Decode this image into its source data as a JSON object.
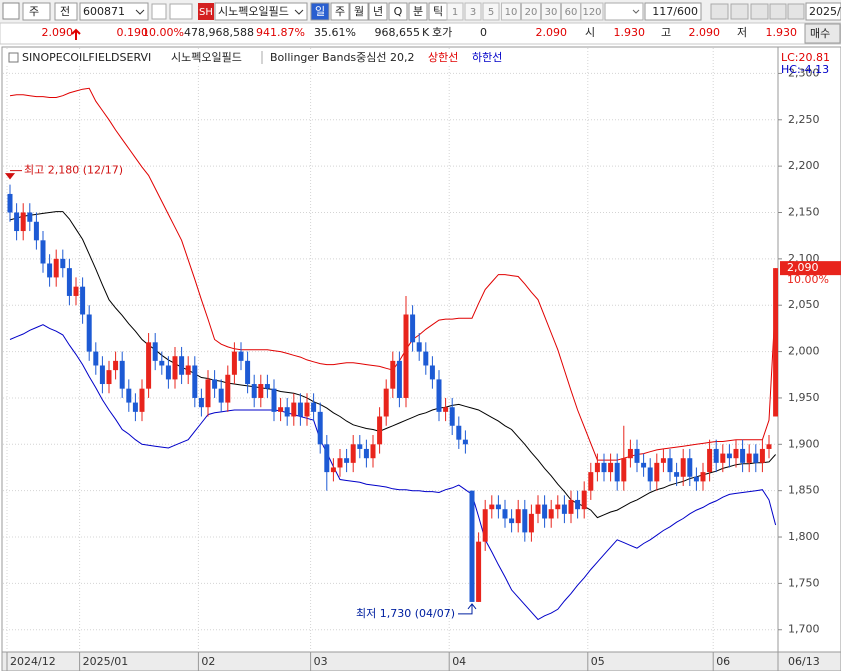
{
  "toolbar": {
    "period": "주",
    "prev_button": "전",
    "code": "600871",
    "market": "SH",
    "name": "시노펙오일필드",
    "intervals": [
      "일",
      "주",
      "월",
      "년",
      "Q",
      "분",
      "틱"
    ],
    "minutes": [
      "1",
      "3",
      "5",
      "10",
      "20",
      "30",
      "60",
      "120"
    ],
    "count": "117/600",
    "date": "2025/"
  },
  "quote": {
    "price": "2.090",
    "change": "0.190",
    "change_pct": "10.00%",
    "volume": "478,968,588",
    "volume_ratio": "941.87%",
    "turnover": "35.61%",
    "amount": "968,655",
    "amount_unit": "K",
    "bid_label": "호가",
    "bid": "0",
    "ask_price": "2.090",
    "open_label": "시",
    "open": "1.930",
    "high_label": "고",
    "high": "2.090",
    "low_label": "저",
    "low": "1.930",
    "buy": "매수"
  },
  "chart_data": {
    "type": "candlestick",
    "symbol": "SINOPECOILFIELDSERVI",
    "name": "시노펙오일필드",
    "categories": [
      "2024/12",
      null,
      null,
      null,
      null,
      null,
      null,
      null,
      null,
      null,
      null,
      "2025/01",
      null,
      null,
      null,
      null,
      null,
      null,
      null,
      null,
      null,
      null,
      null,
      null,
      null,
      null,
      null,
      null,
      null,
      "02",
      null,
      null,
      null,
      null,
      null,
      null,
      null,
      null,
      null,
      null,
      null,
      null,
      null,
      null,
      null,
      null,
      "03",
      null,
      null,
      null,
      null,
      null,
      null,
      null,
      null,
      null,
      null,
      null,
      null,
      null,
      null,
      null,
      null,
      null,
      null,
      null,
      null,
      "04",
      null,
      null,
      null,
      null,
      null,
      null,
      null,
      null,
      null,
      null,
      null,
      null,
      null,
      null,
      null,
      null,
      null,
      null,
      null,
      null,
      "05",
      null,
      null,
      null,
      null,
      null,
      null,
      null,
      null,
      null,
      null,
      null,
      null,
      null,
      null,
      null,
      null,
      null,
      null,
      "06",
      null,
      null,
      null,
      null,
      null,
      null,
      null,
      null,
      null
    ],
    "open": [
      2170,
      2150,
      2130,
      2150,
      2140,
      2120,
      2095,
      2080,
      2100,
      2090,
      2060,
      2070,
      2040,
      2000,
      1985,
      1965,
      1980,
      1990,
      1960,
      1945,
      1935,
      1960,
      2010,
      1990,
      1985,
      1970,
      1995,
      1975,
      1985,
      1950,
      1940,
      1970,
      1960,
      1945,
      1975,
      2000,
      1990,
      1965,
      1950,
      1965,
      1960,
      1935,
      1940,
      1930,
      1945,
      1930,
      1945,
      1935,
      1900,
      1870,
      1875,
      1885,
      1880,
      1900,
      1895,
      1885,
      1900,
      1930,
      1960,
      1990,
      1950,
      2040,
      2010,
      2000,
      1985,
      1970,
      1935,
      1940,
      1920,
      1905,
      1850,
      1730,
      1795,
      1830,
      1835,
      1830,
      1820,
      1815,
      1830,
      1805,
      1825,
      1835,
      1820,
      1830,
      1835,
      1825,
      1840,
      1830,
      1850,
      1870,
      1880,
      1870,
      1880,
      1860,
      1885,
      1895,
      1880,
      1875,
      1860,
      1880,
      1885,
      1870,
      1865,
      1885,
      1865,
      1860,
      1870,
      1895,
      1880,
      1890,
      1885,
      1895,
      1880,
      1890,
      1880,
      1895,
      1930
    ],
    "high": [
      2180,
      2160,
      2160,
      2160,
      2150,
      2130,
      2105,
      2110,
      2110,
      2100,
      2080,
      2080,
      2050,
      2010,
      1995,
      1990,
      2000,
      2000,
      1970,
      1955,
      1970,
      2020,
      2020,
      2000,
      1995,
      2005,
      2005,
      1995,
      1995,
      1960,
      1980,
      1980,
      1970,
      1985,
      2010,
      2010,
      2000,
      1975,
      1975,
      1975,
      1970,
      1950,
      1950,
      1955,
      1955,
      1955,
      1955,
      1945,
      1910,
      1885,
      1895,
      1895,
      1910,
      1910,
      1905,
      1910,
      1940,
      1970,
      2000,
      2000,
      2060,
      2050,
      2020,
      2010,
      1995,
      1980,
      1950,
      1950,
      1930,
      1915,
      1850,
      1805,
      1840,
      1845,
      1845,
      1840,
      1830,
      1840,
      1840,
      1835,
      1845,
      1845,
      1840,
      1845,
      1845,
      1850,
      1850,
      1860,
      1880,
      1890,
      1890,
      1890,
      1890,
      1920,
      1905,
      1905,
      1890,
      1885,
      1890,
      1895,
      1895,
      1880,
      1895,
      1895,
      1875,
      1880,
      1905,
      1905,
      1900,
      1900,
      1905,
      1905,
      1900,
      1900,
      1905,
      1910,
      2090
    ],
    "low": [
      2140,
      2120,
      2120,
      2130,
      2110,
      2085,
      2070,
      2070,
      2080,
      2050,
      2050,
      2030,
      1990,
      1975,
      1955,
      1955,
      1970,
      1950,
      1935,
      1925,
      1925,
      1950,
      1980,
      1975,
      1960,
      1960,
      1965,
      1965,
      1940,
      1930,
      1930,
      1950,
      1935,
      1935,
      1965,
      1980,
      1955,
      1940,
      1940,
      1950,
      1925,
      1925,
      1920,
      1920,
      1920,
      1920,
      1925,
      1890,
      1850,
      1860,
      1865,
      1870,
      1870,
      1885,
      1875,
      1875,
      1890,
      1920,
      1950,
      1940,
      1940,
      2000,
      1990,
      1975,
      1960,
      1925,
      1925,
      1910,
      1895,
      1890,
      1730,
      1730,
      1785,
      1820,
      1820,
      1810,
      1805,
      1805,
      1795,
      1795,
      1815,
      1810,
      1810,
      1820,
      1815,
      1815,
      1820,
      1820,
      1840,
      1860,
      1860,
      1860,
      1850,
      1850,
      1875,
      1870,
      1865,
      1850,
      1850,
      1870,
      1860,
      1855,
      1855,
      1855,
      1850,
      1850,
      1860,
      1870,
      1870,
      1875,
      1875,
      1870,
      1870,
      1870,
      1870,
      1885,
      1930
    ],
    "close": [
      2150,
      2130,
      2150,
      2140,
      2120,
      2095,
      2080,
      2100,
      2090,
      2060,
      2070,
      2040,
      2000,
      1985,
      1965,
      1980,
      1990,
      1960,
      1945,
      1935,
      1960,
      2010,
      1990,
      1985,
      1970,
      1995,
      1975,
      1985,
      1950,
      1940,
      1970,
      1960,
      1945,
      1975,
      2000,
      1990,
      1965,
      1950,
      1965,
      1960,
      1935,
      1940,
      1930,
      1945,
      1930,
      1945,
      1935,
      1900,
      1870,
      1875,
      1885,
      1880,
      1900,
      1895,
      1885,
      1900,
      1930,
      1960,
      1990,
      1950,
      2040,
      2010,
      2000,
      1985,
      1970,
      1935,
      1940,
      1920,
      1905,
      1900,
      1730,
      1795,
      1830,
      1835,
      1830,
      1820,
      1815,
      1830,
      1805,
      1825,
      1835,
      1820,
      1830,
      1835,
      1825,
      1840,
      1830,
      1850,
      1870,
      1880,
      1870,
      1880,
      1860,
      1885,
      1895,
      1880,
      1875,
      1860,
      1880,
      1885,
      1870,
      1865,
      1885,
      1865,
      1860,
      1870,
      1895,
      1880,
      1890,
      1885,
      1895,
      1880,
      1890,
      1880,
      1895,
      1900,
      2090
    ],
    "up_color": "#e8241c",
    "down_color": "#1d5ad4",
    "series": [
      {
        "name": "Bollinger Bands중심선 20,2",
        "color": "#000000",
        "values": [
          2142,
          2144,
          2146,
          2147,
          2148,
          2149,
          2150,
          2151,
          2151,
          2143,
          2132,
          2121,
          2105,
          2089,
          2072,
          2056,
          2047,
          2039,
          2030,
          2022,
          2013,
          2007,
          2002,
          1996,
          1991,
          1987,
          1983,
          1980,
          1976,
          1972,
          1971,
          1969,
          1968,
          1966,
          1965,
          1964,
          1963,
          1962,
          1961,
          1960,
          1959,
          1957,
          1956,
          1955,
          1953,
          1950,
          1946,
          1943,
          1939,
          1934,
          1930,
          1925,
          1921,
          1919,
          1917,
          1916,
          1914,
          1917,
          1920,
          1923,
          1926,
          1929,
          1932,
          1934,
          1937,
          1939,
          1940,
          1942,
          1943,
          1941,
          1939,
          1937,
          1933,
          1929,
          1925,
          1920,
          1916,
          1908,
          1900,
          1891,
          1883,
          1874,
          1866,
          1857,
          1849,
          1840,
          1836,
          1833,
          1829,
          1821,
          1824,
          1827,
          1829,
          1833,
          1837,
          1840,
          1844,
          1848,
          1851,
          1853,
          1856,
          1858,
          1860,
          1863,
          1865,
          1867,
          1869,
          1871,
          1874,
          1876,
          1878,
          1879,
          1879,
          1880,
          1880,
          1881,
          1889
        ]
      },
      {
        "name": "상한선",
        "color": "#e00000",
        "values": [
          2276,
          2277,
          2277,
          2276,
          2275,
          2275,
          2274,
          2274,
          2276,
          2279,
          2281,
          2283,
          2284,
          2270,
          2260,
          2250,
          2239,
          2229,
          2219,
          2209,
          2199,
          2190,
          2176,
          2162,
          2148,
          2134,
          2120,
          2099,
          2078,
          2056,
          2035,
          2013,
          2008,
          2005,
          2003,
          2002,
          2002,
          2002,
          2002,
          2002,
          2001,
          2000,
          1998,
          1996,
          1994,
          1991,
          1989,
          1987,
          1986,
          1986,
          1987,
          1988,
          1988,
          1987,
          1986,
          1985,
          1984,
          1982,
          1980,
          1990,
          2002,
          2013,
          2018,
          2024,
          2029,
          2034,
          2035,
          2035,
          2036,
          2036,
          2036,
          2052,
          2067,
          2075,
          2083,
          2083,
          2082,
          2081,
          2073,
          2064,
          2056,
          2038,
          2020,
          2002,
          1980,
          1958,
          1937,
          1919,
          1901,
          1883,
          1883,
          1883,
          1883,
          1885,
          1887,
          1889,
          1890,
          1892,
          1894,
          1895,
          1896,
          1897,
          1898,
          1899,
          1900,
          1901,
          1902,
          1903,
          1903,
          1904,
          1905,
          1905,
          1905,
          1905,
          1905,
          1926,
          2056
        ]
      },
      {
        "name": "하한선",
        "color": "#0000c8",
        "values": [
          2013,
          2016,
          2019,
          2023,
          2026,
          2029,
          2025,
          2022,
          2018,
          2007,
          1997,
          1986,
          1973,
          1961,
          1948,
          1937,
          1927,
          1916,
          1911,
          1905,
          1900,
          1899,
          1898,
          1897,
          1896,
          1899,
          1902,
          1905,
          1914,
          1923,
          1932,
          1934,
          1935,
          1936,
          1937,
          1937,
          1937,
          1937,
          1937,
          1937,
          1937,
          1936,
          1934,
          1932,
          1930,
          1928,
          1926,
          1905,
          1891,
          1876,
          1862,
          1861,
          1860,
          1859,
          1857,
          1856,
          1855,
          1854,
          1852,
          1851,
          1851,
          1850,
          1850,
          1849,
          1849,
          1848,
          1851,
          1853,
          1856,
          1851,
          1846,
          1822,
          1797,
          1784,
          1770,
          1757,
          1743,
          1735,
          1727,
          1719,
          1711,
          1715,
          1718,
          1722,
          1731,
          1739,
          1748,
          1756,
          1765,
          1773,
          1781,
          1789,
          1797,
          1794,
          1791,
          1788,
          1793,
          1797,
          1802,
          1807,
          1811,
          1816,
          1820,
          1825,
          1829,
          1832,
          1836,
          1839,
          1843,
          1846,
          1847,
          1848,
          1849,
          1850,
          1851,
          1840,
          1813
        ]
      }
    ],
    "ylim": [
      1676,
      2308
    ],
    "yticks": [
      {
        "value": 1700,
        "label": "1,700"
      },
      {
        "value": 1750,
        "label": "1,750"
      },
      {
        "value": 1800,
        "label": "1,800"
      },
      {
        "value": 1850,
        "label": "1,850"
      },
      {
        "value": 1900,
        "label": "1,900"
      },
      {
        "value": 1950,
        "label": "1,950"
      },
      {
        "value": 2000,
        "label": "2,000"
      },
      {
        "value": 2050,
        "label": "2,050"
      },
      {
        "value": 2100,
        "label": "2,100"
      },
      {
        "value": 2150,
        "label": "2,150"
      },
      {
        "value": 2200,
        "label": "2,200"
      },
      {
        "value": 2250,
        "label": "2,250"
      },
      {
        "value": 2300,
        "label": "2,300"
      }
    ],
    "grid": true,
    "annotations": [
      {
        "text": "최고 2,180 (12/17)",
        "kind": "high",
        "value": 2180,
        "color": "#d01010"
      },
      {
        "text": "최저 1,730 (04/07)",
        "kind": "low",
        "value": 1730,
        "color": "#0020a0"
      }
    ],
    "last_label": {
      "value": 2090,
      "label": "2,090"
    },
    "last_change": "10.00%",
    "lc_label": "LC:20.81",
    "hc_label": "HC:-4.13",
    "cursor_date": "06/13"
  }
}
